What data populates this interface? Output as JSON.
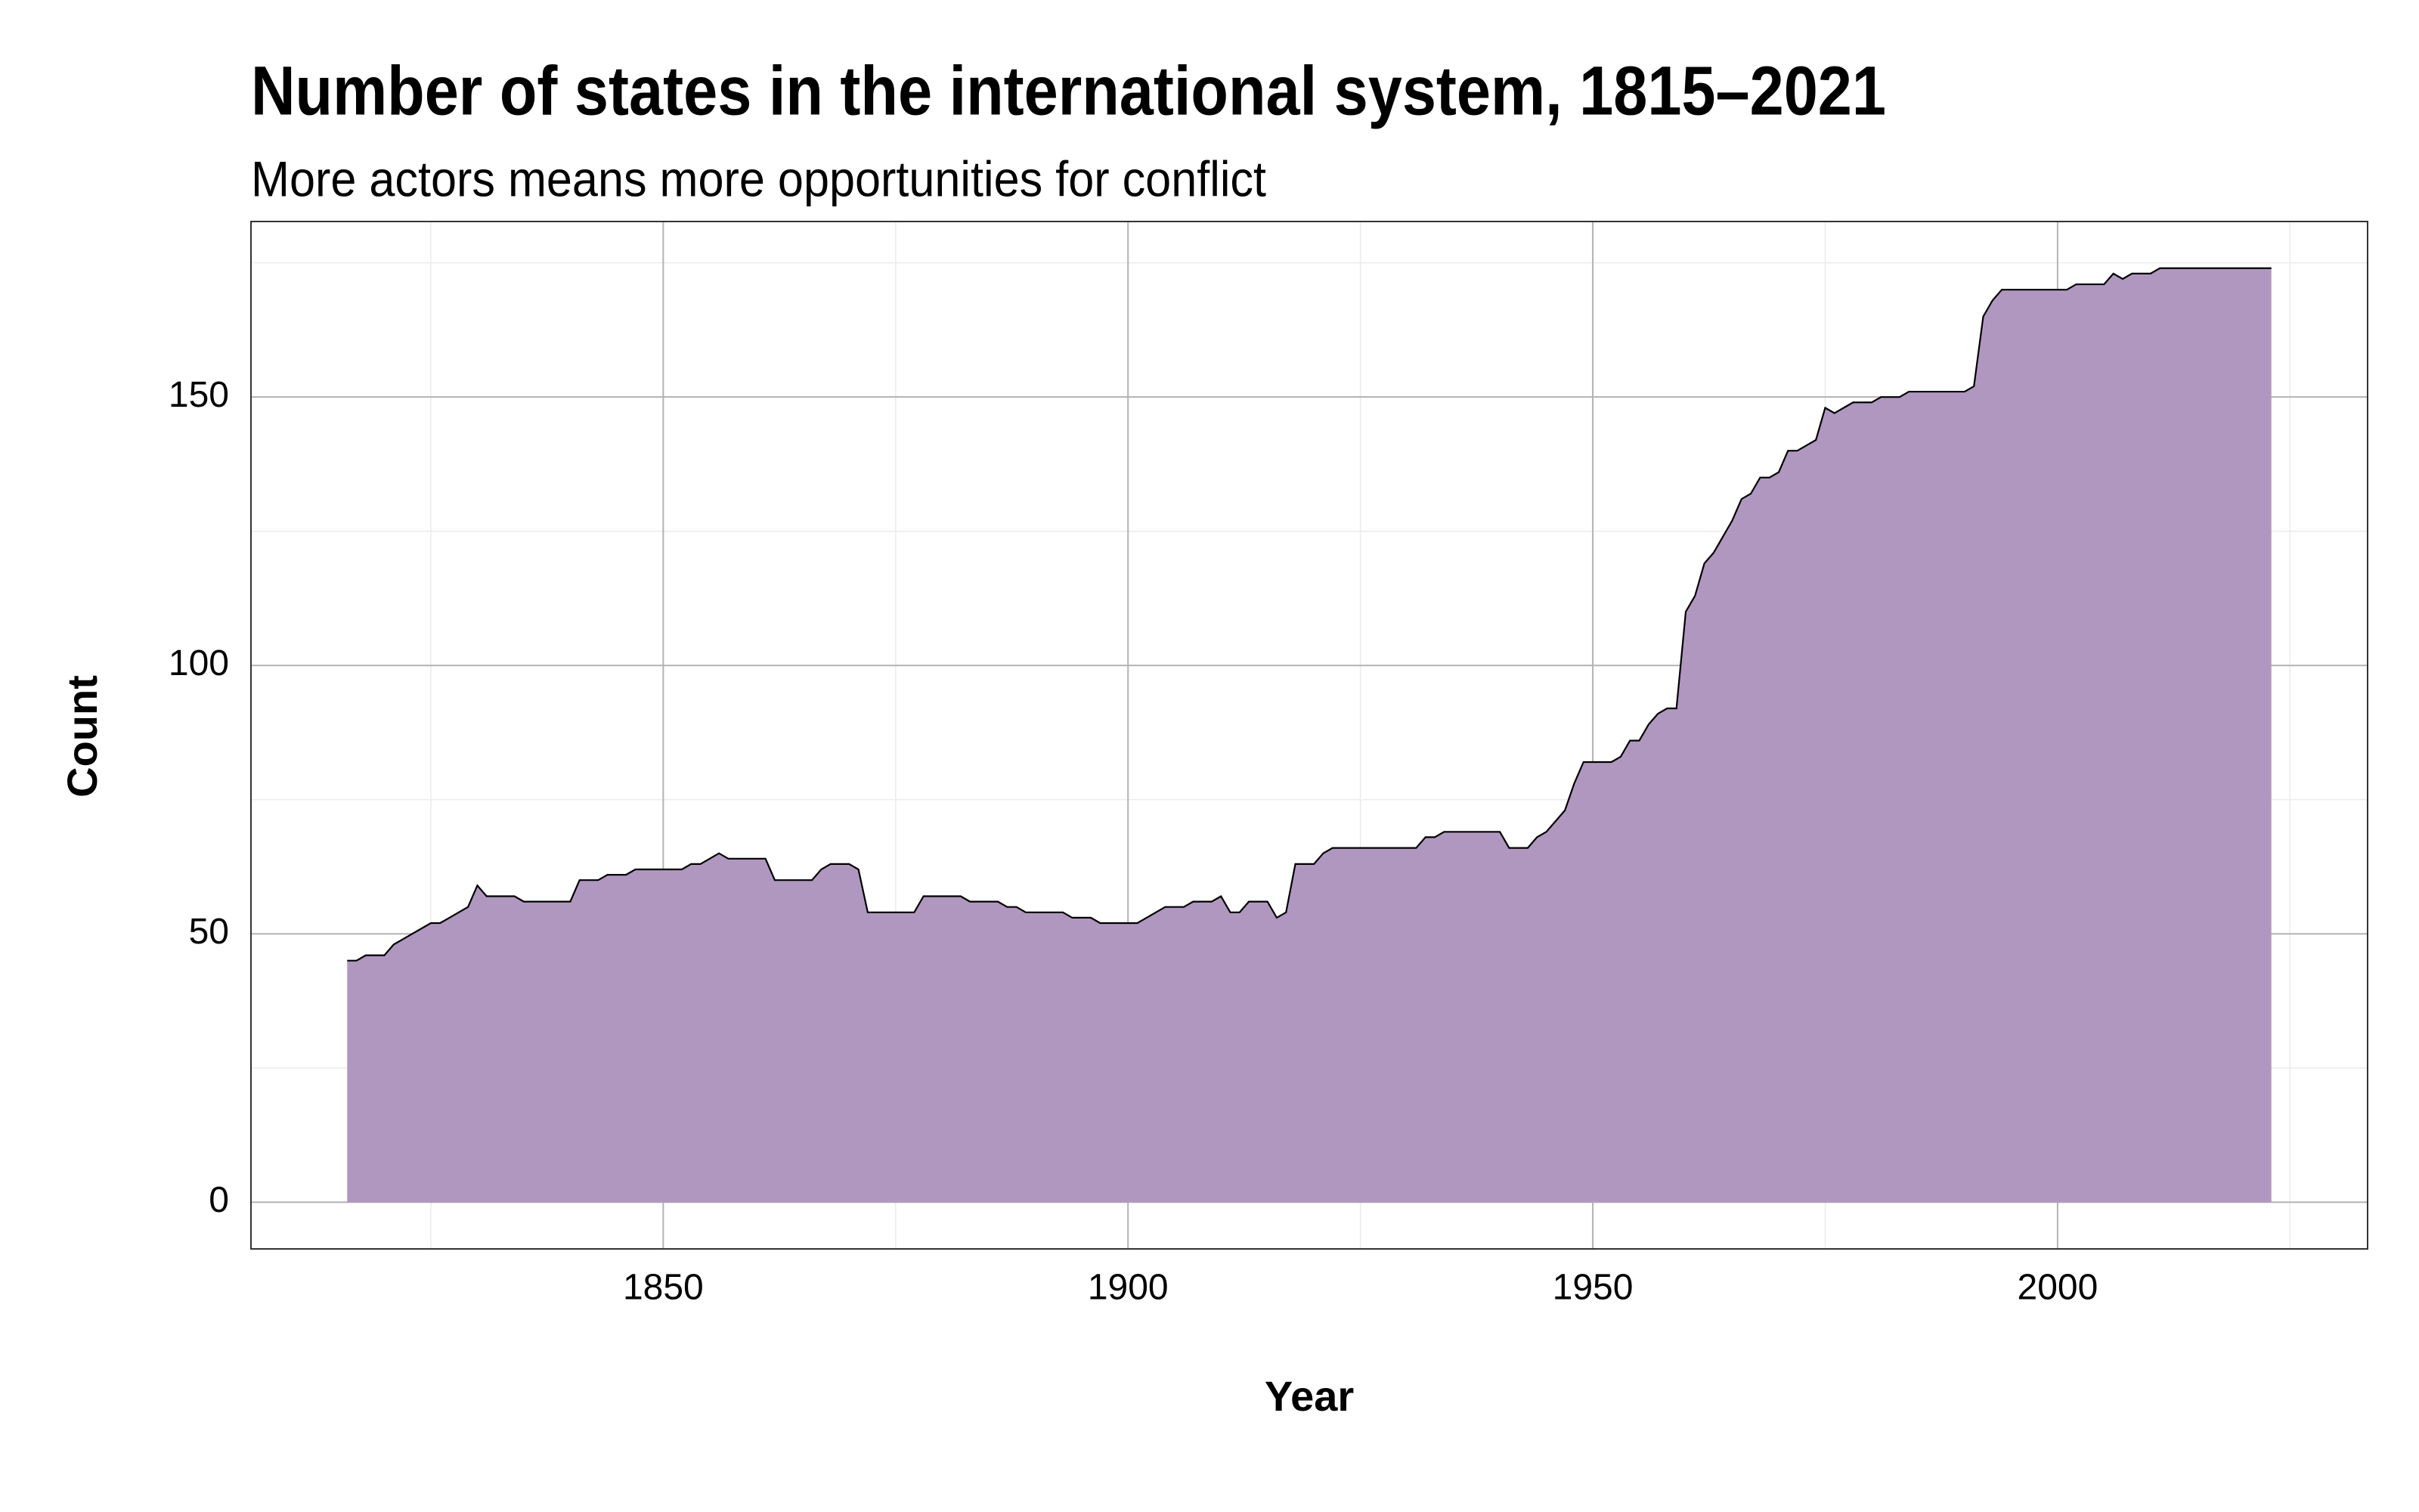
{
  "chart_data": {
    "type": "area",
    "title": "Number of states in the international system, 1815–2021",
    "subtitle": "More actors means more opportunities for conflict",
    "xlabel": "Year",
    "ylabel": "Count",
    "x": [
      1816,
      1817,
      1818,
      1819,
      1820,
      1821,
      1822,
      1823,
      1824,
      1825,
      1826,
      1827,
      1828,
      1829,
      1830,
      1831,
      1832,
      1833,
      1834,
      1835,
      1836,
      1837,
      1838,
      1839,
      1840,
      1841,
      1842,
      1843,
      1844,
      1845,
      1846,
      1847,
      1848,
      1849,
      1850,
      1851,
      1852,
      1853,
      1854,
      1855,
      1856,
      1857,
      1858,
      1859,
      1860,
      1861,
      1862,
      1863,
      1864,
      1865,
      1866,
      1867,
      1868,
      1869,
      1870,
      1871,
      1872,
      1873,
      1874,
      1875,
      1876,
      1877,
      1878,
      1879,
      1880,
      1881,
      1882,
      1883,
      1884,
      1885,
      1886,
      1887,
      1888,
      1889,
      1890,
      1891,
      1892,
      1893,
      1894,
      1895,
      1896,
      1897,
      1898,
      1899,
      1900,
      1901,
      1902,
      1903,
      1904,
      1905,
      1906,
      1907,
      1908,
      1909,
      1910,
      1911,
      1912,
      1913,
      1914,
      1915,
      1916,
      1917,
      1918,
      1919,
      1920,
      1921,
      1922,
      1923,
      1924,
      1925,
      1926,
      1927,
      1928,
      1929,
      1930,
      1931,
      1932,
      1933,
      1934,
      1935,
      1936,
      1937,
      1938,
      1939,
      1940,
      1941,
      1942,
      1943,
      1944,
      1945,
      1946,
      1947,
      1948,
      1949,
      1950,
      1951,
      1952,
      1953,
      1954,
      1955,
      1956,
      1957,
      1958,
      1959,
      1960,
      1961,
      1962,
      1963,
      1964,
      1965,
      1966,
      1967,
      1968,
      1969,
      1970,
      1971,
      1972,
      1973,
      1974,
      1975,
      1976,
      1977,
      1978,
      1979,
      1980,
      1981,
      1982,
      1983,
      1984,
      1985,
      1986,
      1987,
      1988,
      1989,
      1990,
      1991,
      1992,
      1993,
      1994,
      1995,
      1996,
      1997,
      1998,
      1999,
      2000,
      2001,
      2002,
      2003,
      2004,
      2005,
      2006,
      2007,
      2008,
      2009,
      2010,
      2011,
      2012,
      2013,
      2014,
      2015,
      2016,
      2017,
      2018,
      2019,
      2020,
      2021,
      2022,
      2023
    ],
    "series": [
      {
        "color": "#b097c0",
        "values": [
          45,
          45,
          46,
          46,
          46,
          48,
          49,
          50,
          51,
          52,
          52,
          53,
          54,
          55,
          59,
          57,
          57,
          57,
          57,
          56,
          56,
          56,
          56,
          56,
          56,
          60,
          60,
          60,
          61,
          61,
          61,
          62,
          62,
          62,
          62,
          62,
          62,
          63,
          63,
          64,
          65,
          64,
          64,
          64,
          64,
          64,
          60,
          60,
          60,
          60,
          60,
          62,
          63,
          63,
          63,
          62,
          54,
          54,
          54,
          54,
          54,
          54,
          57,
          57,
          57,
          57,
          57,
          56,
          56,
          56,
          56,
          55,
          55,
          54,
          54,
          54,
          54,
          54,
          53,
          53,
          53,
          52,
          52,
          52,
          52,
          52,
          53,
          54,
          55,
          55,
          55,
          56,
          56,
          56,
          57,
          54,
          54,
          56,
          56,
          56,
          53,
          54,
          63,
          63,
          63,
          65,
          66,
          66,
          66,
          66,
          66,
          66,
          66,
          66,
          66,
          66,
          68,
          68,
          69,
          69,
          69,
          69,
          69,
          69,
          69,
          66,
          66,
          66,
          68,
          69,
          71,
          73,
          78,
          82,
          82,
          82,
          82,
          83,
          86,
          86,
          89,
          91,
          92,
          92,
          110,
          113,
          119,
          121,
          124,
          127,
          131,
          132,
          135,
          135,
          136,
          140,
          140,
          141,
          142,
          148,
          147,
          148,
          149,
          149,
          149,
          150,
          150,
          150,
          151,
          151,
          151,
          151,
          151,
          151,
          151,
          152,
          165,
          168,
          170,
          170,
          170,
          170,
          170,
          170,
          170,
          170,
          171,
          171,
          171,
          171,
          173,
          172,
          173,
          173,
          173,
          174,
          174,
          174,
          174,
          174,
          174,
          174,
          174,
          174,
          174,
          174,
          174,
          174
        ]
      }
    ],
    "xlim": [
      1805.65,
      2033.35
    ],
    "xticks": [
      1850,
      1900,
      1950,
      2000
    ],
    "xminor": [
      1825,
      1875,
      1925,
      1975,
      2025
    ],
    "ylim": [
      -8.7,
      182.7
    ],
    "yticks": [
      0,
      50,
      100,
      150
    ],
    "yminor": [
      25,
      75,
      125,
      175
    ],
    "grid": true
  }
}
